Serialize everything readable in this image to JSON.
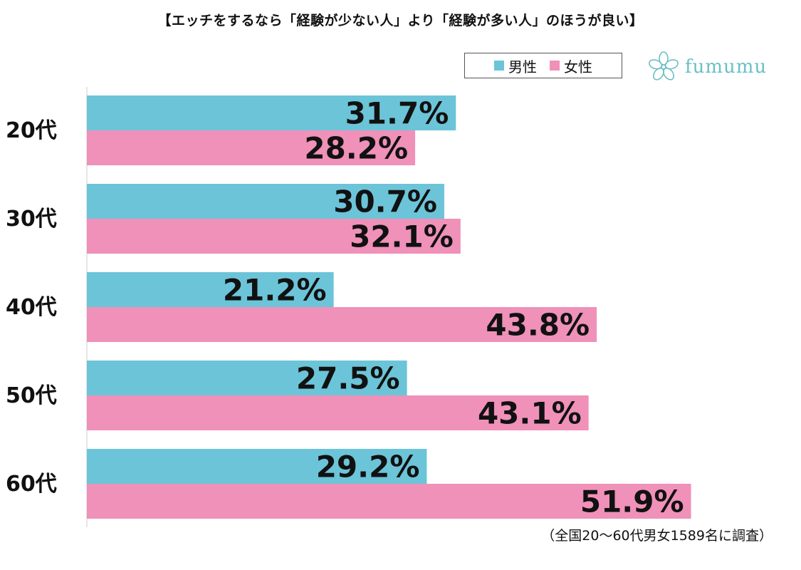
{
  "chart_data": {
    "type": "bar",
    "orientation": "horizontal",
    "title": "【エッチをするなら「経験が少ない人」より「経験が多い人」のほうが良い】",
    "categories": [
      "20代",
      "30代",
      "40代",
      "50代",
      "60代"
    ],
    "series": [
      {
        "name": "男性",
        "color": "#6cc4d8",
        "values": [
          31.7,
          30.7,
          21.2,
          27.5,
          29.2
        ]
      },
      {
        "name": "女性",
        "color": "#ef91b9",
        "values": [
          28.2,
          32.1,
          43.8,
          43.1,
          51.9
        ]
      }
    ],
    "value_suffix": "%",
    "xlim": [
      0,
      52
    ],
    "grid": false,
    "legend_position": "top-right"
  },
  "brand": {
    "name": "fumumu",
    "icon": "flower-logo-icon",
    "color": "#6bbfc6"
  },
  "footnote": "（全国20～60代男女1589名に調査）"
}
